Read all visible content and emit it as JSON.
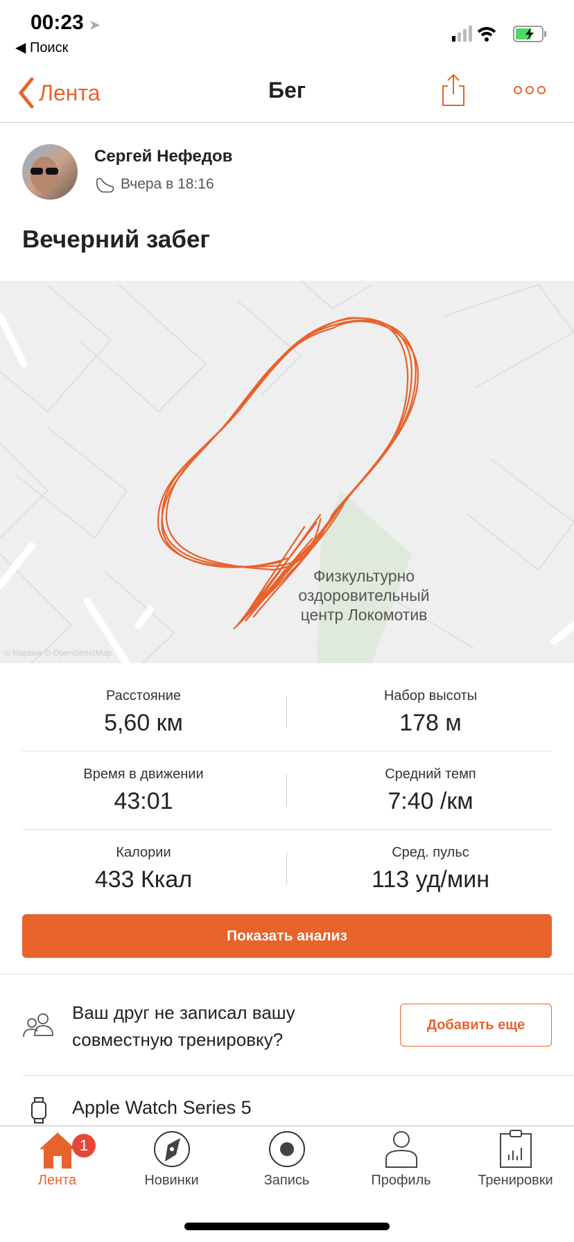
{
  "status_bar": {
    "time": "00:23",
    "back_app": "Поиск"
  },
  "nav": {
    "back_label": "Лента",
    "title": "Бег",
    "icons": [
      "share-icon",
      "more-icon"
    ]
  },
  "colors": {
    "accent": "#e8622c",
    "badge": "#e5463a"
  },
  "activity": {
    "athlete": "Сергей Нефедов",
    "when": "Вчера в 18:16",
    "title": "Вечерний забег",
    "map": {
      "place_label": [
        "Физкультурно",
        "оздоровительный",
        "центр Локомотив"
      ],
      "attribution": "© Mapbox © OpenStreetMap"
    },
    "stats": [
      {
        "label": "Расстояние",
        "value": "5,60 км"
      },
      {
        "label": "Набор высоты",
        "value": "178 м"
      },
      {
        "label": "Время в движении",
        "value": "43:01"
      },
      {
        "label": "Средний темп",
        "value": "7:40 /км"
      },
      {
        "label": "Калории",
        "value": "433 Ккал"
      },
      {
        "label": "Сред. пульс",
        "value": "113 уд/мин"
      }
    ],
    "analysis_button": "Показать анализ",
    "friend_prompt": "Ваш друг не записал вашу совместную тренировку?",
    "add_button": "Добавить еще",
    "device": "Apple Watch Series 5"
  },
  "tabbar": {
    "badge": "1",
    "items": [
      {
        "label": "Лента",
        "icon": "home-icon",
        "active": true
      },
      {
        "label": "Новинки",
        "icon": "compass-icon"
      },
      {
        "label": "Запись",
        "icon": "record-icon"
      },
      {
        "label": "Профиль",
        "icon": "profile-icon"
      },
      {
        "label": "Тренировки",
        "icon": "clipboard-chart-icon"
      }
    ]
  }
}
